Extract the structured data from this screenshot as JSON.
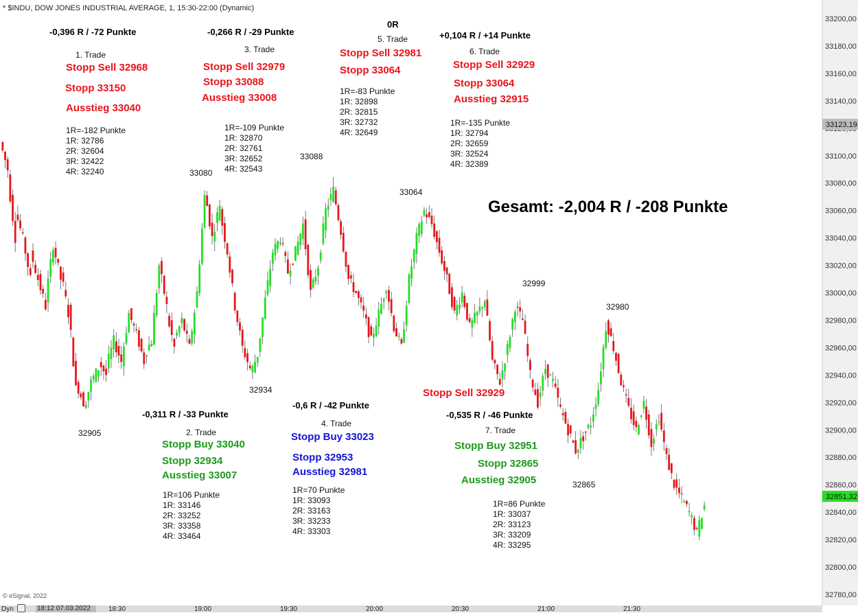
{
  "header": {
    "title": "* $INDU, DOW JONES INDUSTRIAL AVERAGE, 1, 15:30-22:00 (Dynamic)"
  },
  "footer": {
    "copyright": "© eSignal, 2022",
    "dyn": "Dyn",
    "date": "18:12 07.03.2022"
  },
  "colors": {
    "up": "#22e022",
    "down": "#e8151b",
    "axis_bg": "#f0f0f0",
    "current_price_bg": "#bcbcbc",
    "last_price_bg": "#22e022"
  },
  "chart_data": {
    "type": "candlestick",
    "y_axis": {
      "min": 32780,
      "max": 33200,
      "step": 20,
      "tick_labels": [
        "33200,00",
        "33180,00",
        "33160,00",
        "33140,00",
        "33120,00",
        "33100,00",
        "33080,00",
        "33060,00",
        "33040,00",
        "33020,00",
        "33000,00",
        "32980,00",
        "32960,00",
        "32940,00",
        "32920,00",
        "32900,00",
        "32880,00",
        "32860,00",
        "32840,00",
        "32820,00",
        "32800,00",
        "32780,00"
      ]
    },
    "x_axis": {
      "tick_labels": [
        "18:30",
        "19:00",
        "19:30",
        "20:00",
        "20:30",
        "21:00",
        "21:30"
      ]
    },
    "markers": {
      "current_price": "33123,19",
      "last_price": "32851,32"
    },
    "price_labels": [
      {
        "text": "32905"
      },
      {
        "text": "33080"
      },
      {
        "text": "32934"
      },
      {
        "text": "33088"
      },
      {
        "text": "33064"
      },
      {
        "text": "32999"
      },
      {
        "text": "32980"
      },
      {
        "text": "32865"
      }
    ],
    "annotations": {
      "gesamt": "Gesamt: -2,004 R / -208 Punkte",
      "trades": [
        {
          "result": "-0,396 R / -72 Punkte",
          "name": "1. Trade",
          "orders": [
            "Stopp Sell 32968",
            "Stopp 33150",
            "Ausstieg 33040"
          ],
          "levels": [
            "1R=-182 Punkte",
            "1R: 32786",
            "2R: 32604",
            "3R: 32422",
            "4R: 32240"
          ]
        },
        {
          "result": "-0,311 R / -33 Punkte",
          "name": "2. Trade",
          "orders": [
            "Stopp Buy 33040",
            "Stopp 32934",
            "Ausstieg 33007"
          ],
          "levels": [
            "1R=106 Punkte",
            "1R: 33146",
            "2R: 33252",
            "3R: 33358",
            "4R: 33464"
          ]
        },
        {
          "result": "-0,266 R / -29 Punkte",
          "name": "3. Trade",
          "orders": [
            "Stopp Sell 32979",
            "Stopp 33088",
            "Ausstieg 33008"
          ],
          "levels": [
            "1R=-109 Punkte",
            "1R: 32870",
            "2R: 32761",
            "3R: 32652",
            "4R: 32543"
          ]
        },
        {
          "result": "-0,6 R / -42 Punkte",
          "name": "4. Trade",
          "orders": [
            "Stopp Buy 33023",
            "Stopp 32953",
            "Ausstieg 32981"
          ],
          "levels": [
            "1R=70 Punkte",
            "1R: 33093",
            "2R: 33163",
            "3R: 33233",
            "4R: 33303"
          ]
        },
        {
          "result": "0R",
          "name": "5. Trade",
          "orders": [
            "Stopp Sell 32981",
            "Stopp 33064"
          ],
          "levels": [
            "1R=-83 Punkte",
            "1R: 32898",
            "2R: 32815",
            "3R: 32732",
            "4R: 32649"
          ]
        },
        {
          "result": "+0,104 R / +14 Punkte",
          "name": "6. Trade",
          "orders": [
            "Stopp Sell 32929",
            "Stopp 33064",
            "Ausstieg 32915"
          ],
          "levels": [
            "1R=-135 Punkte",
            "1R: 32794",
            "2R: 32659",
            "3R: 32524",
            "4R: 32389"
          ]
        },
        {
          "result": "-0,535 R / -46 Punkte",
          "name": "7. Trade",
          "orders": [
            "Stopp Buy 32951",
            "Stopp 32865",
            "Ausstieg 32905"
          ],
          "levels": [
            "1R=86 Punkte",
            "1R: 33037",
            "2R: 33123",
            "3R: 33209",
            "4R: 33295"
          ]
        }
      ],
      "extra_order": "Stopp Sell 32929"
    },
    "trend_points": [
      [
        33110,
        33090
      ],
      [
        33085,
        33040
      ],
      [
        33060,
        33040
      ],
      [
        33040,
        33010
      ],
      [
        33030,
        33010
      ],
      [
        33010,
        32990
      ],
      [
        32995,
        33035
      ],
      [
        33035,
        33010
      ],
      [
        33015,
        32985
      ],
      [
        32990,
        32930
      ],
      [
        32935,
        32920
      ],
      [
        32915,
        32935
      ],
      [
        32935,
        32945
      ],
      [
        32950,
        32940
      ],
      [
        32945,
        32965
      ],
      [
        32965,
        32950
      ],
      [
        32950,
        32985
      ],
      [
        32985,
        32970
      ],
      [
        32970,
        32950
      ],
      [
        32955,
        32965
      ],
      [
        32965,
        33020
      ],
      [
        33020,
        32990
      ],
      [
        32985,
        32960
      ],
      [
        32965,
        32980
      ],
      [
        32980,
        32960
      ],
      [
        32960,
        33000
      ],
      [
        33000,
        33070
      ],
      [
        33075,
        33040
      ],
      [
        33040,
        33065
      ],
      [
        33060,
        33030
      ],
      [
        33030,
        32990
      ],
      [
        32990,
        32960
      ],
      [
        32960,
        32945
      ],
      [
        32940,
        32955
      ],
      [
        32955,
        32995
      ],
      [
        32995,
        33030
      ],
      [
        33030,
        33040
      ],
      [
        33040,
        33015
      ],
      [
        33015,
        33030
      ],
      [
        33030,
        33050
      ],
      [
        33050,
        33000
      ],
      [
        33000,
        33020
      ],
      [
        33020,
        33060
      ],
      [
        33060,
        33075
      ],
      [
        33075,
        33045
      ],
      [
        33045,
        33010
      ],
      [
        33010,
        33000
      ],
      [
        33000,
        32985
      ],
      [
        32985,
        32965
      ],
      [
        32965,
        32985
      ],
      [
        32985,
        33005
      ],
      [
        33005,
        32975
      ],
      [
        32975,
        32960
      ],
      [
        32960,
        33010
      ],
      [
        33010,
        33040
      ],
      [
        33040,
        33060
      ],
      [
        33060,
        33050
      ],
      [
        33050,
        33030
      ],
      [
        33030,
        33010
      ],
      [
        33010,
        32985
      ],
      [
        32985,
        33000
      ],
      [
        33000,
        32975
      ],
      [
        32975,
        32985
      ],
      [
        32985,
        32995
      ],
      [
        32995,
        32950
      ],
      [
        32950,
        32935
      ],
      [
        32935,
        32960
      ],
      [
        32960,
        32990
      ],
      [
        32990,
        32980
      ],
      [
        32980,
        32940
      ],
      [
        32940,
        32920
      ],
      [
        32920,
        32945
      ],
      [
        32945,
        32935
      ],
      [
        32935,
        32915
      ],
      [
        32915,
        32900
      ],
      [
        32900,
        32885
      ],
      [
        32885,
        32895
      ],
      [
        32895,
        32905
      ],
      [
        32905,
        32930
      ],
      [
        32930,
        32975
      ],
      [
        32980,
        32960
      ],
      [
        32960,
        32935
      ],
      [
        32935,
        32915
      ],
      [
        32915,
        32900
      ],
      [
        32900,
        32920
      ],
      [
        32920,
        32890
      ],
      [
        32890,
        32910
      ],
      [
        32910,
        32880
      ],
      [
        32880,
        32860
      ],
      [
        32860,
        32850
      ],
      [
        32850,
        32840
      ],
      [
        32840,
        32825
      ],
      [
        32825,
        32845
      ]
    ]
  }
}
